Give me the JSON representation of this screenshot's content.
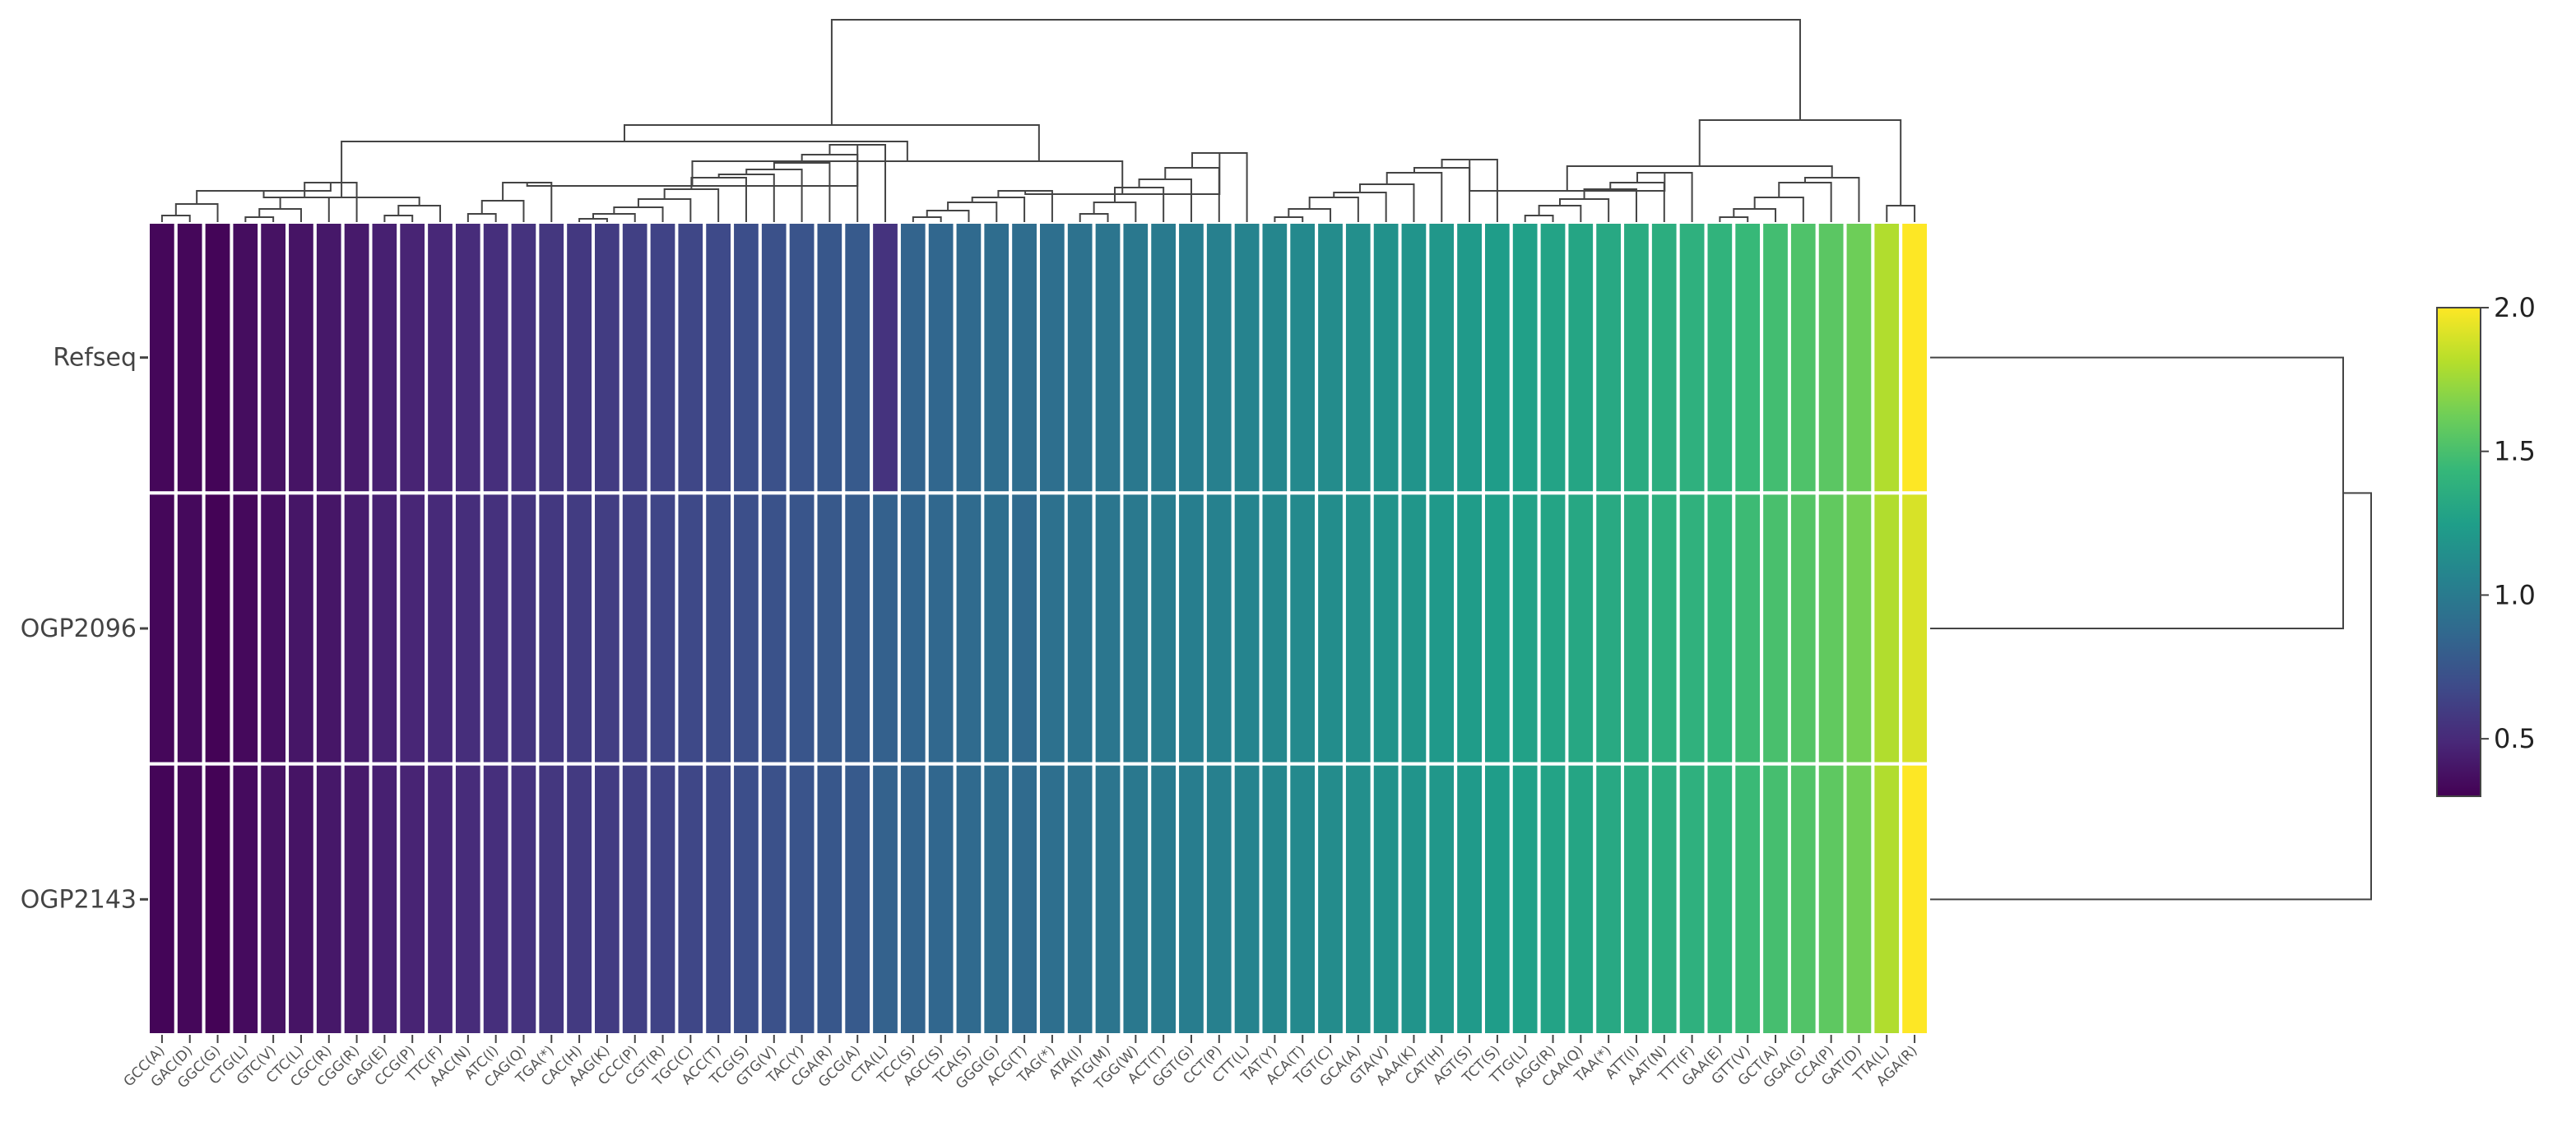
{
  "chart_data": {
    "type": "heatmap",
    "title": "",
    "rows": [
      "Refseq",
      "OGP2096",
      "OGP2143"
    ],
    "columns": [
      "GCC(A)",
      "GAC(D)",
      "GGC(G)",
      "CTG(L)",
      "GTC(V)",
      "CTC(L)",
      "CGC(R)",
      "CGG(R)",
      "GAG(E)",
      "CCG(P)",
      "TTC(F)",
      "AAC(N)",
      "ATC(I)",
      "CAG(Q)",
      "TGA(*)",
      "CAC(H)",
      "AAG(K)",
      "CCC(P)",
      "CGT(R)",
      "TGC(C)",
      "ACC(T)",
      "TCG(S)",
      "GTG(V)",
      "TAC(Y)",
      "CGA(R)",
      "GCG(A)",
      "CTA(L)",
      "TCC(S)",
      "AGC(S)",
      "TCA(S)",
      "GGG(G)",
      "ACG(T)",
      "TAG(*)",
      "ATA(I)",
      "ATG(M)",
      "TGG(W)",
      "ACT(T)",
      "GGT(G)",
      "CCT(P)",
      "CTT(L)",
      "TAT(Y)",
      "ACA(T)",
      "TGT(C)",
      "GCA(A)",
      "GTA(V)",
      "AAA(K)",
      "CAT(H)",
      "AGT(S)",
      "TCT(S)",
      "TTG(L)",
      "AGG(R)",
      "CAA(Q)",
      "TAA(*)",
      "ATT(I)",
      "AAT(N)",
      "TTT(F)",
      "GAA(E)",
      "GTT(V)",
      "GCT(A)",
      "GGA(G)",
      "CCA(P)",
      "GAT(D)",
      "TTA(L)",
      "AGA(R)"
    ],
    "values": [
      [
        0.33,
        0.33,
        0.32,
        0.36,
        0.38,
        0.39,
        0.41,
        0.42,
        0.45,
        0.47,
        0.49,
        0.51,
        0.53,
        0.55,
        0.57,
        0.58,
        0.6,
        0.62,
        0.64,
        0.66,
        0.68,
        0.7,
        0.72,
        0.74,
        0.76,
        0.78,
        0.55,
        0.84,
        0.86,
        0.88,
        0.9,
        0.9,
        0.92,
        0.94,
        0.96,
        0.98,
        1.0,
        1.02,
        1.04,
        1.06,
        1.08,
        1.1,
        1.12,
        1.14,
        1.16,
        1.18,
        1.2,
        1.22,
        1.24,
        1.26,
        1.28,
        1.3,
        1.32,
        1.34,
        1.36,
        1.38,
        1.4,
        1.44,
        1.48,
        1.52,
        1.56,
        1.62,
        1.8,
        2.0
      ],
      [
        0.33,
        0.34,
        0.31,
        0.34,
        0.37,
        0.4,
        0.4,
        0.43,
        0.46,
        0.48,
        0.5,
        0.52,
        0.54,
        0.56,
        0.58,
        0.6,
        0.61,
        0.63,
        0.65,
        0.67,
        0.69,
        0.71,
        0.73,
        0.75,
        0.77,
        0.79,
        0.82,
        0.85,
        0.87,
        0.89,
        0.91,
        0.88,
        0.93,
        0.95,
        0.97,
        0.99,
        1.01,
        1.03,
        1.05,
        1.07,
        1.09,
        1.11,
        1.13,
        1.15,
        1.17,
        1.19,
        1.21,
        1.23,
        1.25,
        1.27,
        1.29,
        1.31,
        1.33,
        1.35,
        1.37,
        1.39,
        1.42,
        1.46,
        1.5,
        1.54,
        1.58,
        1.64,
        1.8,
        1.9
      ],
      [
        0.32,
        0.33,
        0.31,
        0.35,
        0.38,
        0.39,
        0.41,
        0.42,
        0.45,
        0.47,
        0.49,
        0.51,
        0.53,
        0.55,
        0.57,
        0.59,
        0.6,
        0.62,
        0.64,
        0.66,
        0.68,
        0.7,
        0.72,
        0.74,
        0.76,
        0.78,
        0.83,
        0.84,
        0.86,
        0.88,
        0.9,
        0.89,
        0.92,
        0.94,
        0.96,
        0.98,
        1.0,
        1.02,
        1.04,
        1.06,
        1.08,
        1.1,
        1.12,
        1.14,
        1.16,
        1.18,
        1.2,
        1.22,
        1.24,
        1.26,
        1.28,
        1.3,
        1.32,
        1.34,
        1.36,
        1.38,
        1.41,
        1.45,
        1.49,
        1.53,
        1.57,
        1.63,
        1.8,
        2.0
      ]
    ],
    "colorscale": "viridis",
    "colorbar": {
      "range": [
        0.3,
        2.0
      ],
      "ticks": [
        "0.5",
        "1.0",
        "1.5",
        "2.0"
      ]
    },
    "column_dendrogram": true,
    "row_dendrogram": true
  }
}
